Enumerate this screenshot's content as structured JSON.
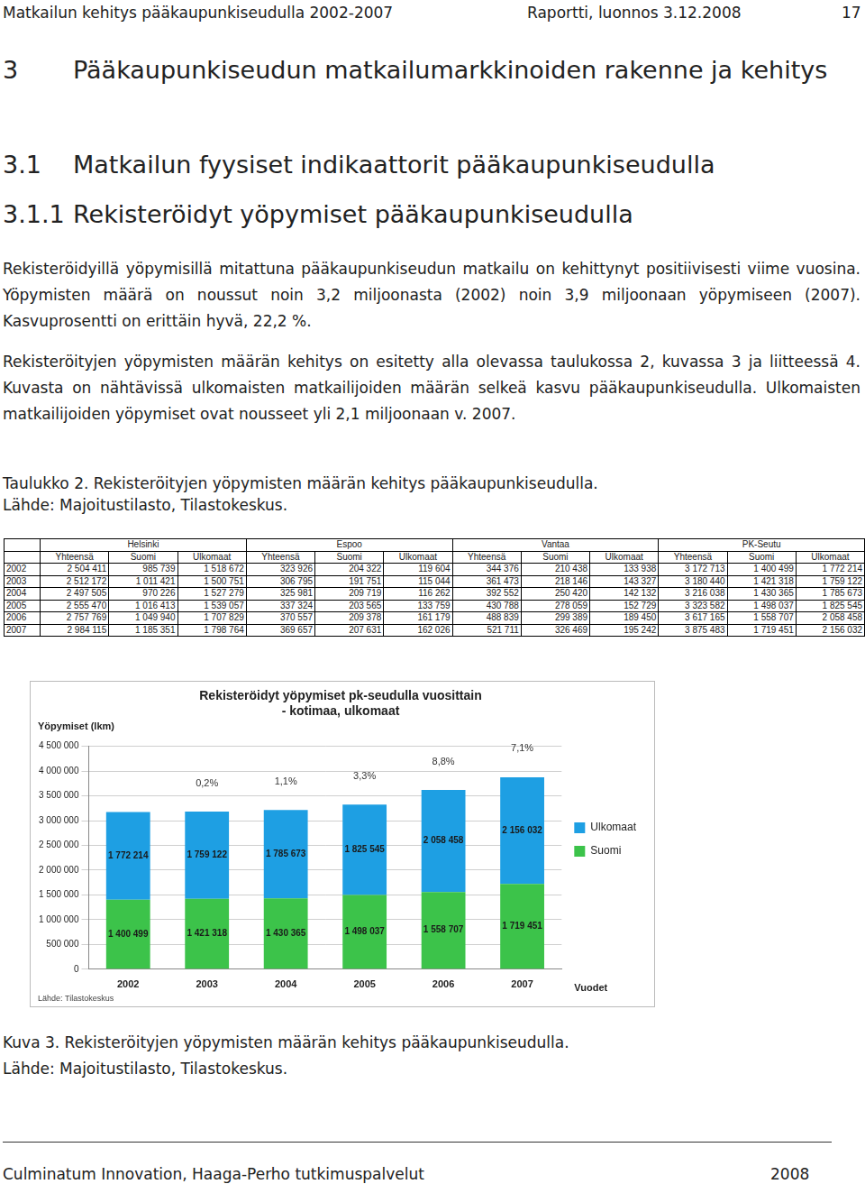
{
  "header": {
    "left": "Matkailun kehitys pääkaupunkiseudulla 2002-2007",
    "middle": "Raportti, luonnos 3.12.2008",
    "page": "17"
  },
  "headings": [
    {
      "number": "3",
      "text": "Pääkaupunkiseudun matkailumarkkinoiden rakenne ja kehitys"
    },
    {
      "number": "3.1",
      "text": "Matkailun fyysiset indikaattorit pääkaupunkiseudulla"
    },
    {
      "number": "3.1.1",
      "text": "Rekisteröidyt yöpymiset pääkaupunkiseudulla"
    }
  ],
  "paragraphs": [
    "Rekisteröidyillä yöpymisillä mitattuna pääkaupunkiseudun matkailu on kehittynyt positiivisesti viime vuosina. Yöpymisten määrä on noussut noin 3,2 miljoonasta (2002) noin 3,9 miljoonaan yöpymiseen (2007). Kasvuprosentti on erittäin hyvä, 22,2 %.",
    "Rekisteröityjen yöpymisten määrän kehitys on esitetty alla olevassa taulukossa 2, kuvassa 3 ja liitteessä 4. Kuvasta on nähtävissä ulkomaisten matkailijoiden määrän selkeä kasvu pääkaupunkiseudulla. Ulkomaisten matkailijoiden yöpymiset ovat nousseet yli 2,1 miljoonaan v. 2007."
  ],
  "table_caption": [
    "Taulukko 2. Rekisteröityjen yöpymisten määrän kehitys pääkaupunkiseudulla.",
    "Lähde: Majoitustilasto, Tilastokeskus."
  ],
  "table": {
    "groups": [
      "Helsinki",
      "Espoo",
      "Vantaa",
      "PK-Seutu"
    ],
    "subheaders": [
      "Yhteensä",
      "Suomi",
      "Ulkomaat"
    ],
    "rows": [
      [
        "2002",
        "2 504 411",
        "985 739",
        "1 518 672",
        "323 926",
        "204 322",
        "119 604",
        "344 376",
        "210 438",
        "133 938",
        "3 172 713",
        "1 400 499",
        "1 772 214"
      ],
      [
        "2003",
        "2 512 172",
        "1 011 421",
        "1 500 751",
        "306 795",
        "191 751",
        "115 044",
        "361 473",
        "218 146",
        "143 327",
        "3 180 440",
        "1 421 318",
        "1 759 122"
      ],
      [
        "2004",
        "2 497 505",
        "970 226",
        "1 527 279",
        "325 981",
        "209 719",
        "116 262",
        "392 552",
        "250 420",
        "142 132",
        "3 216 038",
        "1 430 365",
        "1 785 673"
      ],
      [
        "2005",
        "2 555 470",
        "1 016 413",
        "1 539 057",
        "337 324",
        "203 565",
        "133 759",
        "430 788",
        "278 059",
        "152 729",
        "3 323 582",
        "1 498 037",
        "1 825 545"
      ],
      [
        "2006",
        "2 757 769",
        "1 049 940",
        "1 707 829",
        "370 557",
        "209 378",
        "161 179",
        "488 839",
        "299 389",
        "189 450",
        "3 617 165",
        "1 558 707",
        "2 058 458"
      ],
      [
        "2007",
        "2 984 115",
        "1 185 351",
        "1 798 764",
        "369 657",
        "207 631",
        "162 026",
        "521 711",
        "326 469",
        "195 242",
        "3 875 483",
        "1 719 451",
        "2 156 032"
      ]
    ]
  },
  "chart_data": {
    "type": "bar",
    "title": [
      "Rekisteröidyt yöpymiset pk-seudulla vuosittain",
      "- kotimaa, ulkomaat"
    ],
    "y_label": "Yöpymiset (lkm)",
    "x_label": "Vuodet",
    "source": "Lähde: Tilastokeskus",
    "categories": [
      "2002",
      "2003",
      "2004",
      "2005",
      "2006",
      "2007"
    ],
    "series": [
      {
        "name": "Suomi",
        "color": "#3cc34a",
        "values": [
          1400499,
          1421318,
          1430365,
          1498037,
          1558707,
          1719451
        ],
        "value_labels": [
          "1 400 499",
          "1 421 318",
          "1 430 365",
          "1 498 037",
          "1 558 707",
          "1 719 451"
        ]
      },
      {
        "name": "Ulkomaat",
        "color": "#1e9fe3",
        "values": [
          1772214,
          1759122,
          1785673,
          1825545,
          2058458,
          2156032
        ],
        "value_labels": [
          "1 772 214",
          "1 759 122",
          "1 785 673",
          "1 825 545",
          "2 058 458",
          "2 156 032"
        ]
      }
    ],
    "annotations": [
      {
        "category": "2003",
        "value": 0.2,
        "label": "0,2%"
      },
      {
        "category": "2004",
        "value": 1.1,
        "label": "1,1%"
      },
      {
        "category": "2005",
        "value": 3.3,
        "label": "3,3%"
      },
      {
        "category": "2006",
        "value": 8.8,
        "label": "8,8%"
      },
      {
        "category": "2007",
        "value": 7.1,
        "label": "7,1%"
      }
    ],
    "stacked": true,
    "data_labels": true,
    "legend": "right",
    "grid": true,
    "ylim": [
      0,
      4500000
    ],
    "yticks": [
      0,
      {
        "value": 500000,
        "label": "500 000"
      },
      {
        "value": 1000000,
        "label": "1 000 000"
      },
      {
        "value": 1500000,
        "label": "1 500 000"
      },
      {
        "value": 2000000,
        "label": "2 000 000"
      },
      {
        "value": 2500000,
        "label": "2 500 000"
      },
      {
        "value": 3000000,
        "label": "3 000 000"
      },
      {
        "value": 3500000,
        "label": "3 500 000"
      },
      {
        "value": 4000000,
        "label": "4 000 000"
      },
      {
        "value": 4500000,
        "label": "4 500 000"
      }
    ]
  },
  "figure_caption": [
    "Kuva 3. Rekisteröityjen yöpymisten määrän kehitys pääkaupunkiseudulla.",
    "Lähde: Majoitustilasto, Tilastokeskus."
  ],
  "footer": {
    "left": "Culminatum Innovation, Haaga-Perho tutkimuspalvelut",
    "right": "2008"
  }
}
